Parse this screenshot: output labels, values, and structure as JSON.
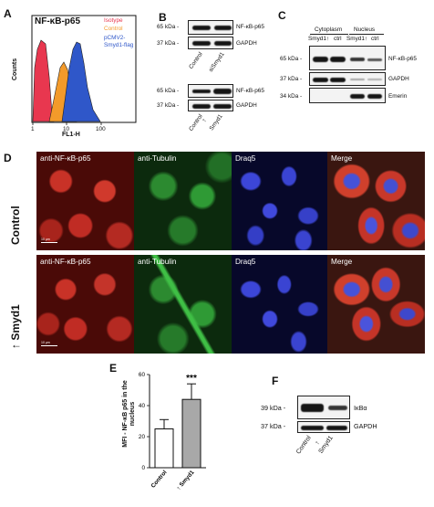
{
  "panels": {
    "A": "A",
    "B": "B",
    "C": "C",
    "D": "D",
    "E": "E",
    "F": "F"
  },
  "panelA": {
    "title": "NF-κB-p65",
    "legend": [
      {
        "label": "Isotype",
        "color": "#e8374f"
      },
      {
        "label": "Control",
        "color": "#f39a2a"
      },
      {
        "label": "pCMV2-Smyd1-flag",
        "color": "#2f57c9"
      }
    ],
    "xlabel": "FL1-H",
    "ylabel": "Counts",
    "xticks": [
      "1",
      "10",
      "100"
    ]
  },
  "panelB": {
    "top": {
      "mw": [
        "65 kDa -",
        "37 kDa -"
      ],
      "proteins": [
        "NF-κB-p65",
        "GAPDH"
      ],
      "lanes": [
        "Control",
        "siSmyd1"
      ]
    },
    "bottom": {
      "mw": [
        "65 kDa -",
        "37 kDa -"
      ],
      "proteins": [
        "NF-κB-p65",
        "GAPDH"
      ],
      "lanes": [
        "Control",
        "Smyd1"
      ]
    }
  },
  "panelC": {
    "groups": [
      "Cytoplasm",
      "Nucleus"
    ],
    "lanes": [
      "Smyd1↑",
      "ctrl",
      "Smyd1↑",
      "ctrl"
    ],
    "mw": [
      "65 kDa -",
      "37 kDa -",
      "34 kDa -"
    ],
    "proteins": [
      "NF-κB-p65",
      "GAPDH",
      "Emerin"
    ]
  },
  "panelD": {
    "columns": [
      "anti-NF-κB-p65",
      "anti-Tubulin",
      "Draq5",
      "Merge"
    ],
    "rows": [
      "Control",
      "Smyd1"
    ],
    "scale": "10 µm"
  },
  "panelE": {
    "chart_data": {
      "type": "bar",
      "categories": [
        "Control",
        "Smyd1"
      ],
      "values": [
        25,
        44
      ],
      "errors": [
        6,
        10
      ],
      "ylim": [
        0,
        60
      ],
      "yticks": [
        0,
        20,
        40,
        60
      ],
      "ylabel": "MFI - NF-κB p65 in the nucleus",
      "significance": "***",
      "colors": [
        "#ffffff",
        "#a8a8a8"
      ]
    }
  },
  "panelF": {
    "mw": [
      "39 kDa -",
      "37 kDa -"
    ],
    "proteins": [
      "IκBα",
      "GAPDH"
    ],
    "lanes": [
      "Control",
      "Smyd1"
    ]
  }
}
